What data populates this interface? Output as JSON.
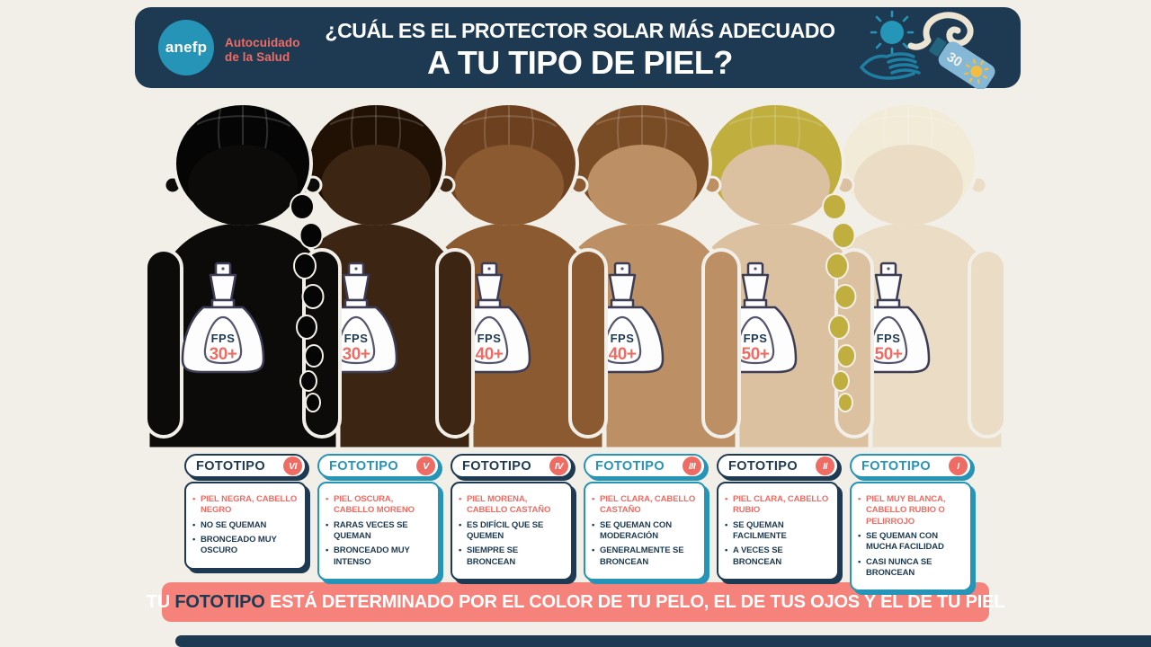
{
  "colors": {
    "navy": "#1d3a52",
    "teal": "#2694b6",
    "salmon": "#ee6c64",
    "banner_pink": "#f5837c",
    "background": "#f2efe8",
    "bottle_outline": "#3c3c55",
    "tube_blue": "#85b7d7",
    "sun_yellow": "#f1bd45"
  },
  "header": {
    "logo_text": "anefp",
    "brand_line1": "Autocuidado",
    "brand_line2": "de la Salud",
    "title_line1": "¿CUÁL ES EL PROTECTOR SOLAR MÁS ADECUADO",
    "title_line2": "A TU TIPO DE PIEL?",
    "tube_spf": "30"
  },
  "figures": [
    {
      "badge_label": "FOTOTIPO",
      "numeral": "VI",
      "fps_label": "FPS",
      "fps_value": "30+",
      "accent": "navy",
      "braid": true,
      "skin_color": "#0d0b09",
      "hair_color": "#060505",
      "traits": [
        "PIEL NEGRA, CABELLO NEGRO",
        "NO SE QUEMAN",
        "BRONCEADO MUY OSCURO"
      ]
    },
    {
      "badge_label": "FOTOTIPO",
      "numeral": "V",
      "fps_label": "FPS",
      "fps_value": "30+",
      "accent": "teal",
      "braid": false,
      "skin_color": "#3c2513",
      "hair_color": "#211104",
      "traits": [
        "PIEL OSCURA, CABELLO MORENO",
        "RARAS VECES SE QUEMAN",
        "BRONCEADO MUY INTENSO"
      ]
    },
    {
      "badge_label": "FOTOTIPO",
      "numeral": "IV",
      "fps_label": "FPS",
      "fps_value": "40+",
      "accent": "navy",
      "braid": false,
      "skin_color": "#8b5a31",
      "hair_color": "#6d4120",
      "traits": [
        "PIEL MORENA, CABELLO CASTAÑO",
        "ES DIFÍCIL QUE SE QUEMEN",
        "SIEMPRE SE BRONCEAN"
      ]
    },
    {
      "badge_label": "FOTOTIPO",
      "numeral": "III",
      "fps_label": "FPS",
      "fps_value": "40+",
      "accent": "teal",
      "braid": false,
      "skin_color": "#bc9064",
      "hair_color": "#7a4c26",
      "traits": [
        "PIEL CLARA, CABELLO CASTAÑO",
        "SE QUEMAN CON MODERACIÓN",
        "GENERALMENTE SE BRONCEAN"
      ]
    },
    {
      "badge_label": "FOTOTIPO",
      "numeral": "II",
      "fps_label": "FPS",
      "fps_value": "50+",
      "accent": "navy",
      "braid": true,
      "skin_color": "#dcc1a0",
      "hair_color": "#c0ae3f",
      "traits": [
        "PIEL CLARA, CABELLO RUBIO",
        "SE QUEMAN FACILMENTE",
        "A VECES SE BRONCEAN"
      ]
    },
    {
      "badge_label": "FOTOTIPO",
      "numeral": "I",
      "fps_label": "FPS",
      "fps_value": "50+",
      "accent": "teal",
      "braid": false,
      "skin_color": "#ebddc5",
      "hair_color": "#f2ebd8",
      "traits": [
        "PIEL MUY BLANCA, CABELLO RUBIO O PELIRROJO",
        "SE QUEMAN CON MUCHA FACILIDAD",
        "CASI NUNCA SE BRONCEAN"
      ]
    }
  ],
  "banner": {
    "prefix": "TU ",
    "highlight": "FOTOTIPO",
    "suffix": " ESTÁ DETERMINADO POR EL COLOR DE TU PELO, EL DE TUS OJOS Y EL DE TU PIEL"
  }
}
